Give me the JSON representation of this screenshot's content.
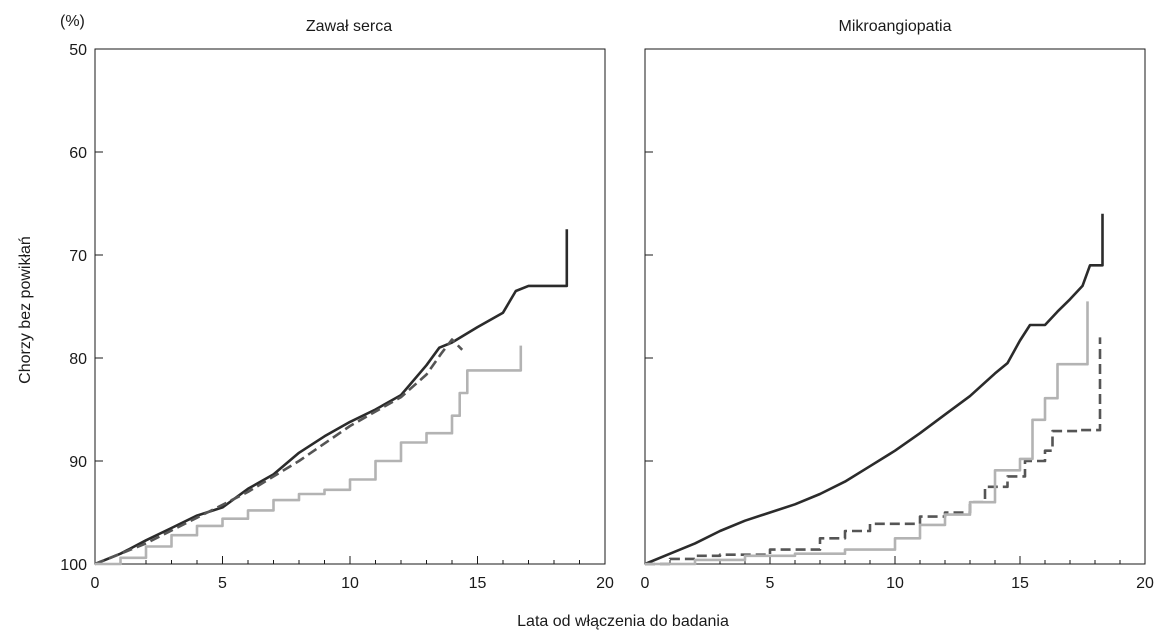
{
  "figure": {
    "unit_label": "(%)",
    "ylabel": "Chorzy bez powikłań",
    "xlabel": "Lata od włączenia do badania"
  },
  "chart_data": [
    {
      "type": "line",
      "title": "Zawał serca",
      "xlim": [
        0,
        20
      ],
      "ylim": [
        50,
        100
      ],
      "y_inverted": true,
      "x_ticks": [
        0,
        5,
        10,
        15,
        20
      ],
      "y_ticks": [
        50,
        60,
        70,
        80,
        90,
        100
      ],
      "grid": false,
      "legend": "none",
      "series": [
        {
          "style": "solid",
          "color": "#2b2b2b",
          "step": false,
          "points": [
            [
              0,
              100
            ],
            [
              1,
              99
            ],
            [
              2,
              97.7
            ],
            [
              3,
              96.5
            ],
            [
              4,
              95.3
            ],
            [
              5,
              94.5
            ],
            [
              6,
              92.7
            ],
            [
              7,
              91.3
            ],
            [
              8,
              89.2
            ],
            [
              9,
              87.6
            ],
            [
              10,
              86.2
            ],
            [
              11,
              85
            ],
            [
              12,
              83.6
            ],
            [
              13,
              80.7
            ],
            [
              13.5,
              79
            ],
            [
              14,
              78.5
            ],
            [
              15,
              77
            ],
            [
              16,
              75.6
            ],
            [
              16.5,
              73.5
            ],
            [
              17,
              73
            ],
            [
              18.5,
              73
            ],
            [
              18.5,
              67.5
            ]
          ]
        },
        {
          "style": "dashed",
          "color": "#555555",
          "step": false,
          "points": [
            [
              0,
              100
            ],
            [
              2,
              98
            ],
            [
              4,
              95.5
            ],
            [
              6,
              93
            ],
            [
              8,
              90
            ],
            [
              10,
              86.6
            ],
            [
              12,
              83.8
            ],
            [
              13,
              81.6
            ],
            [
              13.6,
              79.5
            ],
            [
              14,
              78.2
            ],
            [
              14.4,
              79.2
            ]
          ]
        },
        {
          "style": "solid",
          "color": "#b3b3b3",
          "step": true,
          "points": [
            [
              0,
              100
            ],
            [
              1,
              99.4
            ],
            [
              2,
              98.3
            ],
            [
              3,
              97.2
            ],
            [
              4,
              96.3
            ],
            [
              5,
              95.6
            ],
            [
              6,
              94.8
            ],
            [
              7,
              93.8
            ],
            [
              8,
              93.2
            ],
            [
              9,
              92.8
            ],
            [
              10,
              91.8
            ],
            [
              11,
              90
            ],
            [
              12,
              88.2
            ],
            [
              13,
              87.3
            ],
            [
              14,
              85.6
            ],
            [
              14.3,
              83.4
            ],
            [
              14.6,
              81.2
            ],
            [
              16.7,
              81.2
            ],
            [
              16.7,
              78.8
            ]
          ]
        }
      ]
    },
    {
      "type": "line",
      "title": "Mikroangiopatia",
      "xlim": [
        0,
        20
      ],
      "ylim": [
        50,
        100
      ],
      "y_inverted": true,
      "x_ticks": [
        0,
        5,
        10,
        15,
        20
      ],
      "y_ticks": [
        50,
        60,
        70,
        80,
        90,
        100
      ],
      "grid": false,
      "legend": "none",
      "series": [
        {
          "style": "solid",
          "color": "#2b2b2b",
          "step": false,
          "points": [
            [
              0,
              100
            ],
            [
              1,
              99
            ],
            [
              2,
              98
            ],
            [
              3,
              96.8
            ],
            [
              4,
              95.8
            ],
            [
              5,
              95
            ],
            [
              6,
              94.2
            ],
            [
              7,
              93.2
            ],
            [
              8,
              92
            ],
            [
              9,
              90.5
            ],
            [
              10,
              89
            ],
            [
              11,
              87.3
            ],
            [
              12,
              85.5
            ],
            [
              13,
              83.7
            ],
            [
              14,
              81.5
            ],
            [
              14.5,
              80.5
            ],
            [
              15,
              78.3
            ],
            [
              15.4,
              76.8
            ],
            [
              16,
              76.8
            ],
            [
              16.5,
              75.5
            ],
            [
              17,
              74.3
            ],
            [
              17.5,
              73
            ],
            [
              17.8,
              71
            ],
            [
              18.3,
              71
            ],
            [
              18.3,
              66
            ]
          ]
        },
        {
          "style": "dashed",
          "color": "#555555",
          "step": true,
          "points": [
            [
              0,
              100
            ],
            [
              1,
              99.5
            ],
            [
              2,
              99.2
            ],
            [
              3,
              99.1
            ],
            [
              5,
              98.6
            ],
            [
              7,
              97.5
            ],
            [
              8,
              96.8
            ],
            [
              9,
              96.1
            ],
            [
              11,
              95.4
            ],
            [
              12,
              95
            ],
            [
              13,
              94
            ],
            [
              13.6,
              92.5
            ],
            [
              14.5,
              91.5
            ],
            [
              15.2,
              90
            ],
            [
              16,
              89
            ],
            [
              16.3,
              87.1
            ],
            [
              17.4,
              87.1
            ],
            [
              17.4,
              87
            ],
            [
              18.2,
              83.5
            ],
            [
              18.2,
              78
            ]
          ]
        },
        {
          "style": "solid",
          "color": "#b3b3b3",
          "step": true,
          "points": [
            [
              0,
              100
            ],
            [
              2,
              99.6
            ],
            [
              4,
              99.2
            ],
            [
              6,
              99
            ],
            [
              8,
              98.6
            ],
            [
              10,
              97.5
            ],
            [
              11,
              96.2
            ],
            [
              12,
              95.2
            ],
            [
              13,
              94
            ],
            [
              14,
              90.9
            ],
            [
              15,
              89.8
            ],
            [
              15.5,
              86
            ],
            [
              16,
              83.9
            ],
            [
              16.5,
              80.6
            ],
            [
              17.5,
              80.6
            ],
            [
              17.7,
              74.5
            ]
          ]
        }
      ]
    }
  ]
}
